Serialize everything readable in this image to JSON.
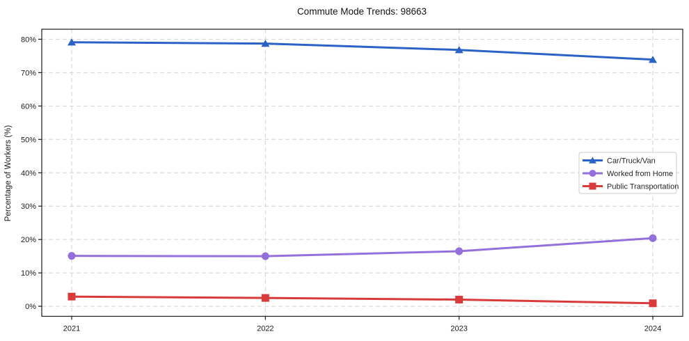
{
  "chart_data": {
    "type": "line",
    "title": "Commute Mode Trends: 98663",
    "xlabel": "",
    "ylabel": "Percentage of Workers (%)",
    "categories": [
      "2021",
      "2022",
      "2023",
      "2024"
    ],
    "yticks": [
      0,
      10,
      20,
      30,
      40,
      50,
      60,
      70,
      80
    ],
    "ytick_suffix": "%",
    "ylim": [
      -3,
      83
    ],
    "grid": true,
    "grid_style": "dashed",
    "legend_position": "center-right",
    "colors": {
      "grid": "#d2d2d2",
      "spine": "#1a1a1a",
      "tick_label": "#1a1a1a",
      "legend_border": "#cccccc",
      "legend_text": "#262626"
    },
    "series": [
      {
        "name": "Car/Truck/Van",
        "color": "#2a62c5",
        "marker": "triangle",
        "values": [
          79.1,
          78.7,
          76.8,
          73.9
        ]
      },
      {
        "name": "Worked from Home",
        "color": "#9370db",
        "marker": "circle",
        "values": [
          15.1,
          15.0,
          16.5,
          20.4
        ]
      },
      {
        "name": "Public Transportation",
        "color": "#d93b3b",
        "marker": "square",
        "values": [
          2.9,
          2.5,
          2.0,
          0.9
        ]
      }
    ]
  }
}
